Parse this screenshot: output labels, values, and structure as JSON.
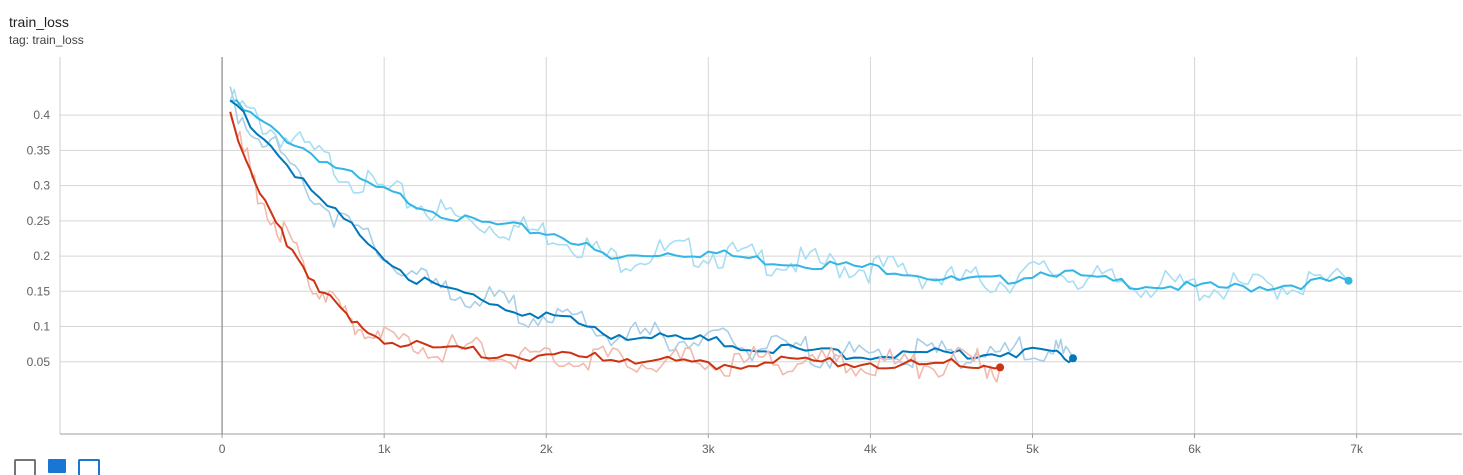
{
  "card": {
    "title": "train_loss",
    "tag": "tag: train_loss"
  },
  "toolbar": {
    "fit_icon": "fit-domain-icon",
    "color_icon": "color-swatch-icon",
    "download_icon": "download-icon"
  },
  "chart_data": {
    "type": "line",
    "title": "train_loss",
    "xlabel": "",
    "ylabel": "",
    "xlim": [
      -1000,
      7650
    ],
    "ylim": [
      -0.0525,
      0.4825
    ],
    "x_ticks": [
      0,
      1000,
      2000,
      3000,
      4000,
      5000,
      6000,
      7000
    ],
    "x_tick_labels": [
      "0",
      "1k",
      "2k",
      "3k",
      "4k",
      "5k",
      "6k",
      "7k"
    ],
    "y_ticks": [
      0.05,
      0.1,
      0.15,
      0.2,
      0.25,
      0.3,
      0.35,
      0.4
    ],
    "y_tick_labels": [
      "0.05",
      "0.1",
      "0.15",
      "0.2",
      "0.25",
      "0.3",
      "0.35",
      "0.4"
    ],
    "grid": true,
    "legend": "none",
    "series": [
      {
        "color": "#33b5e5",
        "raw_color": "#a8def3",
        "x": [
          50,
          300,
          600,
          900,
          1200,
          1500,
          1800,
          2100,
          2400,
          2700,
          3000,
          3300,
          3600,
          3900,
          4200,
          4500,
          4800,
          5100,
          5400,
          5700,
          6000,
          6300,
          6600,
          6950
        ],
        "y": [
          0.42,
          0.38,
          0.34,
          0.3,
          0.275,
          0.25,
          0.24,
          0.23,
          0.195,
          0.205,
          0.205,
          0.195,
          0.19,
          0.185,
          0.18,
          0.165,
          0.165,
          0.18,
          0.165,
          0.16,
          0.155,
          0.155,
          0.16,
          0.165
        ]
      },
      {
        "color": "#0077bb",
        "raw_color": "#a9cfe6",
        "x": [
          50,
          300,
          600,
          900,
          1200,
          1500,
          1800,
          2100,
          2400,
          2700,
          3000,
          3300,
          3600,
          3900,
          4200,
          4500,
          4800,
          5100,
          5250
        ],
        "y": [
          0.42,
          0.36,
          0.28,
          0.22,
          0.165,
          0.145,
          0.125,
          0.11,
          0.09,
          0.085,
          0.08,
          0.07,
          0.065,
          0.06,
          0.06,
          0.062,
          0.063,
          0.065,
          0.055
        ]
      },
      {
        "color": "#cc3311",
        "raw_color": "#f2b9ad",
        "x": [
          50,
          200,
          400,
          600,
          800,
          1000,
          1300,
          1600,
          1900,
          2200,
          2500,
          2800,
          3100,
          3400,
          3700,
          4000,
          4300,
          4600,
          4800
        ],
        "y": [
          0.405,
          0.3,
          0.22,
          0.155,
          0.105,
          0.08,
          0.07,
          0.063,
          0.058,
          0.056,
          0.054,
          0.05,
          0.046,
          0.052,
          0.05,
          0.048,
          0.046,
          0.05,
          0.042
        ]
      }
    ]
  }
}
